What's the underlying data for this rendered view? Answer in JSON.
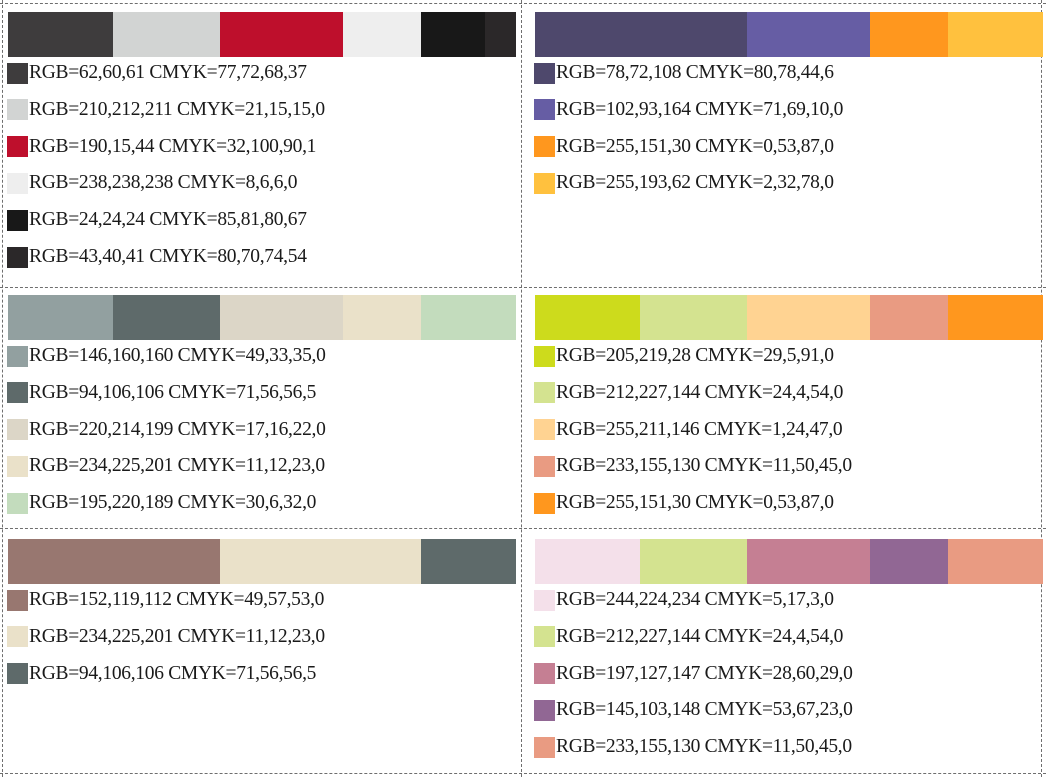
{
  "palettes": [
    {
      "colors": [
        {
          "rgb_text": "RGB=62,60,61 CMYK=77,72,68,37",
          "hex": "#3e3c3d"
        },
        {
          "rgb_text": "RGB=210,212,211 CMYK=21,15,15,0",
          "hex": "#d2d4d3"
        },
        {
          "rgb_text": "RGB=190,15,44 CMYK=32,100,90,1",
          "hex": "#be0f2c"
        },
        {
          "rgb_text": "RGB=238,238,238 CMYK=8,6,6,0",
          "hex": "#eeeeee"
        },
        {
          "rgb_text": "RGB=24,24,24 CMYK=85,81,80,67",
          "hex": "#181818"
        },
        {
          "rgb_text": "RGB=43,40,41 CMYK=80,70,74,54",
          "hex": "#2b2829"
        }
      ],
      "bar_weights": [
        105,
        107,
        123,
        78,
        64,
        31
      ]
    },
    {
      "colors": [
        {
          "rgb_text": "RGB=78,72,108 CMYK=80,78,44,6",
          "hex": "#4e486c"
        },
        {
          "rgb_text": "RGB=102,93,164 CMYK=71,69,10,0",
          "hex": "#665da4"
        },
        {
          "rgb_text": "RGB=255,151,30 CMYK=0,53,87,0",
          "hex": "#ff971e"
        },
        {
          "rgb_text": "RGB=255,193,62 CMYK=2,32,78,0",
          "hex": "#ffc13e"
        }
      ],
      "bar_weights": [
        212,
        123,
        78,
        95
      ]
    },
    {
      "colors": [
        {
          "rgb_text": "RGB=146,160,160 CMYK=49,33,35,0",
          "hex": "#92a0a0"
        },
        {
          "rgb_text": "RGB=94,106,106 CMYK=71,56,56,5",
          "hex": "#5e6a6a"
        },
        {
          "rgb_text": "RGB=220,214,199 CMYK=17,16,22,0",
          "hex": "#dcd6c7"
        },
        {
          "rgb_text": "RGB=234,225,201 CMYK=11,12,23,0",
          "hex": "#eae1c9"
        },
        {
          "rgb_text": "RGB=195,220,189 CMYK=30,6,32,0",
          "hex": "#c3dcbd"
        }
      ],
      "bar_weights": [
        105,
        107,
        123,
        78,
        95
      ]
    },
    {
      "colors": [
        {
          "rgb_text": "RGB=205,219,28 CMYK=29,5,91,0",
          "hex": "#cddb1c"
        },
        {
          "rgb_text": "RGB=212,227,144 CMYK=24,4,54,0",
          "hex": "#d4e390"
        },
        {
          "rgb_text": "RGB=255,211,146 CMYK=1,24,47,0",
          "hex": "#ffd392"
        },
        {
          "rgb_text": "RGB=233,155,130 CMYK=11,50,45,0",
          "hex": "#e99b82"
        },
        {
          "rgb_text": "RGB=255,151,30 CMYK=0,53,87,0",
          "hex": "#ff971e"
        }
      ],
      "bar_weights": [
        105,
        107,
        123,
        78,
        95
      ]
    },
    {
      "colors": [
        {
          "rgb_text": "RGB=152,119,112 CMYK=49,57,53,0",
          "hex": "#987770"
        },
        {
          "rgb_text": "RGB=234,225,201 CMYK=11,12,23,0",
          "hex": "#eae1c9"
        },
        {
          "rgb_text": "RGB=94,106,106 CMYK=71,56,56,5",
          "hex": "#5e6a6a"
        }
      ],
      "bar_weights": [
        212,
        201,
        95
      ]
    },
    {
      "colors": [
        {
          "rgb_text": "RGB=244,224,234 CMYK=5,17,3,0",
          "hex": "#f4e0ea"
        },
        {
          "rgb_text": "RGB=212,227,144 CMYK=24,4,54,0",
          "hex": "#d4e390"
        },
        {
          "rgb_text": "RGB=197,127,147 CMYK=28,60,29,0",
          "hex": "#c57f93"
        },
        {
          "rgb_text": "RGB=145,103,148 CMYK=53,67,23,0",
          "hex": "#916794"
        },
        {
          "rgb_text": "RGB=233,155,130 CMYK=11,50,45,0",
          "hex": "#e99b82"
        }
      ],
      "bar_weights": [
        105,
        107,
        123,
        78,
        95
      ]
    }
  ]
}
